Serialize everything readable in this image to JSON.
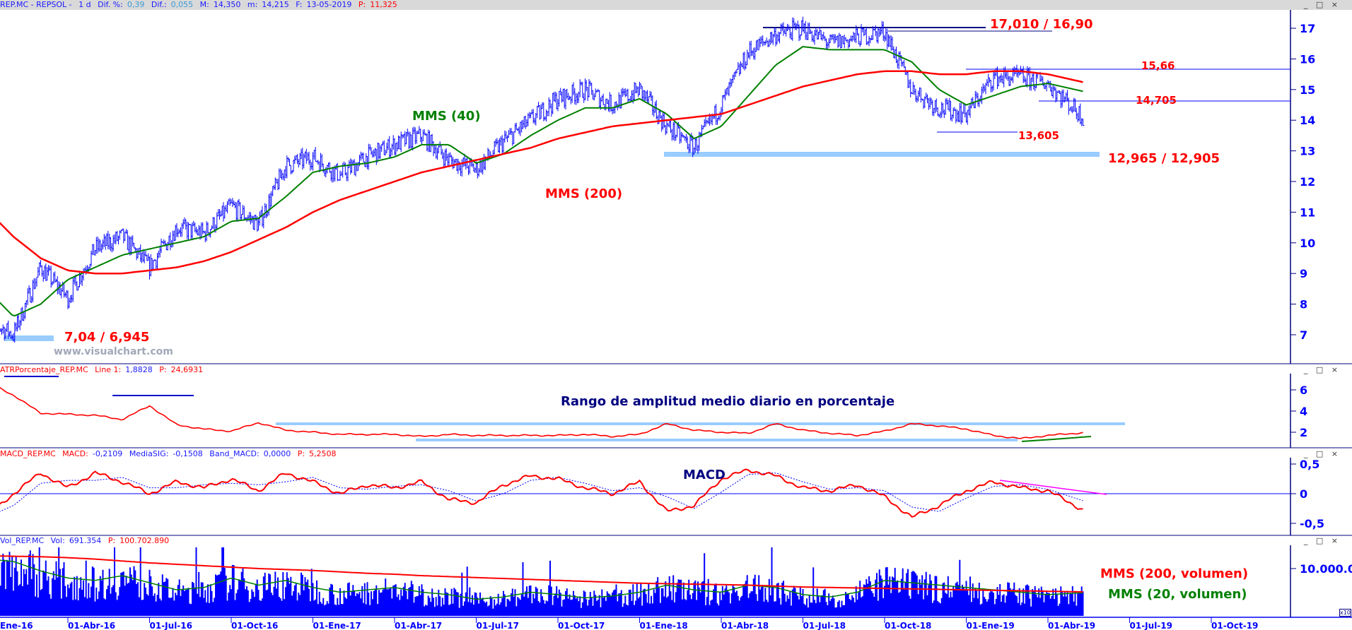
{
  "header": {
    "symbol": "REP.MC - REPSOL -",
    "period": "1 d",
    "dif_pct_label": "Dif. %:",
    "dif_pct": "0,39",
    "dif_label": "Dif.:",
    "dif": "0,055",
    "max_label": "M:",
    "max": "14,350",
    "min_label": "m:",
    "min": "14,215",
    "date_label": "F:",
    "date": "13-05-2019",
    "p_label": "P:",
    "p": "11,325"
  },
  "atr_header": {
    "name": "ATRPorcentaje_REP.MC",
    "line_label": "Line 1:",
    "line": "1,8828",
    "p_label": "P:",
    "p": "24,6931"
  },
  "macd_header": {
    "name": "MACD_REP.MC",
    "macd_label": "MACD:",
    "macd": "-0,2109",
    "sig_label": "MediaSIG:",
    "sig": "-0,1508",
    "band_label": "Band_MACD:",
    "band": "0,0000",
    "p_label": "P:",
    "p": "5,2508"
  },
  "vol_header": {
    "name": "Vol_REP.MC",
    "vol_label": "Vol:",
    "vol": "691.354",
    "p_label": "P:",
    "p": "100.702.890"
  },
  "window_controls": "_ □ ×",
  "watermark": "www.visualchart.com",
  "annotations": {
    "top": "17,010 / 16,90",
    "r1": "15,66",
    "r2": "14,705",
    "s1": "13,605",
    "s2": "12,965 / 12,905",
    "low": "7,04 / 6,945",
    "mms40": "MMS (40)",
    "mms200": "MMS (200)",
    "atr_title": "Rango de amplitud medio diario en porcentaje",
    "macd_title": "MACD",
    "vol_mms200": "MMS (200, volumen)",
    "vol_mms20": "MMS (20, volumen)",
    "vol_scale": "x10"
  },
  "colors": {
    "price": "#0000ff",
    "mms40": "#008000",
    "mms200": "#ff0000",
    "band": "#99ccff",
    "axis": "#000080",
    "magenta": "#ff00ff"
  },
  "chart_data": [
    {
      "type": "line",
      "title": "REP.MC - REPSOL",
      "x_start": "2016-01",
      "x_step": "month",
      "x_ticks": [
        "Ene-16",
        "01-Abr-16",
        "01-Jul-16",
        "01-Oct-16",
        "01-Ene-17",
        "01-Abr-17",
        "01-Jul-17",
        "01-Oct-17",
        "01-Ene-18",
        "01-Abr-18",
        "01-Jul-18",
        "01-Oct-18",
        "01-Ene-19",
        "01-Abr-19",
        "01-Jul-19",
        "01-Oct-19"
      ],
      "y_ticks": [
        "17",
        "16",
        "15",
        "14",
        "13",
        "12",
        "11",
        "10",
        "9",
        "8",
        "7"
      ],
      "ylim": [
        6,
        17.2
      ],
      "series": [
        {
          "name": "price",
          "values": [
            7.5,
            7.0,
            9.2,
            8.2,
            9.8,
            10.2,
            9.2,
            10.5,
            10.3,
            11.2,
            10.6,
            12.5,
            12.8,
            12.2,
            12.8,
            13.2,
            13.5,
            12.7,
            12.4,
            13.3,
            14.0,
            14.7,
            15.0,
            14.5,
            15.0,
            13.8,
            13.1,
            14.5,
            16.2,
            16.8,
            17.0,
            16.5,
            16.7,
            16.9,
            15.0,
            14.4,
            14.2,
            15.4,
            15.4,
            15.2,
            14.35
          ]
        },
        {
          "name": "MMS (40)",
          "values": [
            8.5,
            7.6,
            8.0,
            8.8,
            9.2,
            9.6,
            9.8,
            10.0,
            10.2,
            10.7,
            10.8,
            11.5,
            12.3,
            12.5,
            12.6,
            12.8,
            13.2,
            13.2,
            12.6,
            12.9,
            13.5,
            14.0,
            14.4,
            14.4,
            14.7,
            14.2,
            13.4,
            13.8,
            14.8,
            15.8,
            16.4,
            16.3,
            16.3,
            16.3,
            15.9,
            15.0,
            14.5,
            14.8,
            15.1,
            15.2,
            15.0
          ]
        },
        {
          "name": "MMS (200)",
          "values": [
            11.1,
            10.2,
            9.5,
            9.1,
            9.0,
            9.0,
            9.1,
            9.2,
            9.4,
            9.7,
            10.1,
            10.5,
            11.0,
            11.4,
            11.7,
            12.0,
            12.3,
            12.5,
            12.7,
            12.9,
            13.1,
            13.4,
            13.6,
            13.8,
            13.9,
            14.0,
            14.1,
            14.2,
            14.5,
            14.8,
            15.1,
            15.3,
            15.5,
            15.6,
            15.6,
            15.5,
            15.5,
            15.6,
            15.6,
            15.5,
            15.3
          ]
        }
      ]
    },
    {
      "type": "line",
      "title": "ATRPorcentaje_REP.MC",
      "y_ticks": [
        "6",
        "4",
        "2"
      ],
      "ylim": [
        1,
        7.5
      ],
      "series": [
        {
          "name": "Line 1",
          "values": [
            6.8,
            5.5,
            3.8,
            3.7,
            3.6,
            3.2,
            4.5,
            2.7,
            2.3,
            2.1,
            2.9,
            2.2,
            2.0,
            1.8,
            1.8,
            1.8,
            1.6,
            1.8,
            1.7,
            1.7,
            1.7,
            1.7,
            1.8,
            1.6,
            1.8,
            2.8,
            2.2,
            2.0,
            1.9,
            2.8,
            2.2,
            1.9,
            1.7,
            2.1,
            2.8,
            2.6,
            2.3,
            1.7,
            1.4,
            1.7,
            1.9
          ]
        }
      ]
    },
    {
      "type": "line",
      "title": "MACD_REP.MC",
      "y_ticks": [
        "0,5",
        "0",
        "-0,5"
      ],
      "ylim": [
        -0.6,
        0.6
      ],
      "series": [
        {
          "name": "MACD",
          "values": [
            -0.4,
            0.0,
            0.35,
            0.1,
            0.35,
            0.2,
            0.0,
            0.2,
            0.1,
            0.25,
            0.05,
            0.35,
            0.2,
            0.0,
            0.15,
            0.1,
            0.2,
            -0.1,
            -0.15,
            0.15,
            0.3,
            0.25,
            0.1,
            0.0,
            0.2,
            -0.3,
            -0.2,
            0.25,
            0.4,
            0.3,
            0.1,
            0.05,
            0.15,
            -0.05,
            -0.4,
            -0.2,
            0.05,
            0.2,
            0.1,
            0.05,
            -0.2
          ]
        }
      ]
    },
    {
      "type": "bar",
      "title": "Vol_REP.MC",
      "y_ticks": [
        "10.000.000"
      ],
      "ylim": [
        0,
        16000000
      ],
      "series": [
        {
          "name": "MMS (200, volumen)",
          "values": [
            12700000,
            12600000,
            12500000,
            12300000,
            12000000,
            11600000,
            11200000,
            10900000,
            10600000,
            10300000,
            10000000,
            9800000,
            9600000,
            9300000,
            9000000,
            8800000,
            8500000,
            8300000,
            8100000,
            7900000,
            7700000,
            7500000,
            7300000,
            7100000,
            6900000,
            6800000,
            6700000,
            6600000,
            6500000,
            6300000,
            6100000,
            6000000,
            5900000,
            5800000,
            5700000,
            5600000,
            5500000,
            5400000,
            5300000,
            5200000,
            5100000
          ]
        },
        {
          "name": "MMS (20, volumen)",
          "values": [
            12000000,
            11500000,
            9500000,
            8000000,
            7500000,
            8500000,
            7000000,
            5500000,
            6000000,
            8000000,
            6500000,
            7500000,
            6000000,
            5000000,
            5500000,
            6000000,
            5000000,
            4500000,
            3500000,
            4000000,
            5000000,
            4500000,
            3800000,
            4200000,
            5000000,
            6500000,
            5500000,
            5000000,
            6500000,
            6000000,
            4500000,
            4000000,
            5000000,
            7500000,
            7000000,
            6500000,
            6000000,
            5500000,
            5000000,
            4500000,
            4800000
          ]
        }
      ]
    }
  ]
}
